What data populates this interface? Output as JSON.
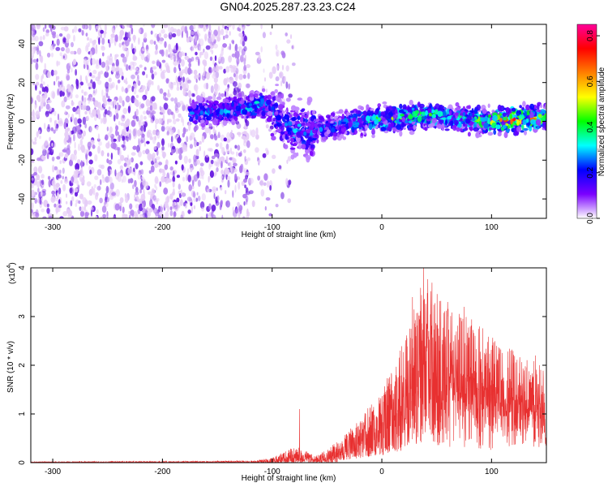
{
  "title": "GN04.2025.287.23.23.C24",
  "colors": {
    "scatter_light": "#e6cdf7",
    "scatter_mid": "#b17df0",
    "scatter_dark": "#6a1ee0",
    "snr_line": "#e83030",
    "axis": "#000000"
  },
  "chart_data": [
    {
      "type": "heatmap",
      "xlabel": "Height of straight line (km)",
      "ylabel": "Frequency (Hz)",
      "xlim": [
        -320,
        150
      ],
      "ylim": [
        -50,
        50
      ],
      "x_ticks": [
        -300,
        -200,
        -100,
        0,
        100
      ],
      "y_ticks": [
        -40,
        -20,
        0,
        20,
        40
      ],
      "colorbar": {
        "label": "Normalized spectral amplitude",
        "range": [
          0,
          0.85
        ],
        "ticks": [
          0.0,
          0.2,
          0.4,
          0.6,
          0.8
        ],
        "tick_labels": [
          "0.0",
          "0.2",
          "0.4",
          "0.6",
          "0.8"
        ],
        "colormap": [
          "#ffffff",
          "#7a00ff",
          "#0000ff",
          "#00ffff",
          "#00ff00",
          "#ffff00",
          "#ff8000",
          "#ff0000",
          "#ff0099"
        ]
      },
      "band": {
        "center_x": [
          -175,
          -150,
          -125,
          -110,
          -100,
          -90,
          -80,
          -60,
          -40,
          -20,
          0,
          20,
          40,
          60,
          80,
          100,
          120,
          150
        ],
        "center_hz": [
          4,
          5,
          7,
          9,
          5,
          -1,
          -5,
          -4,
          -2,
          0,
          1,
          2,
          3,
          2,
          1,
          0,
          1,
          2
        ],
        "peak_amplitude": [
          0.3,
          0.3,
          0.35,
          0.4,
          0.3,
          0.25,
          0.35,
          0.3,
          0.3,
          0.4,
          0.5,
          0.5,
          0.5,
          0.45,
          0.5,
          0.6,
          0.75,
          0.6
        ]
      },
      "noise_region_x": [
        -320,
        -120
      ]
    },
    {
      "type": "line",
      "xlabel": "Height of straight line (km)",
      "ylabel": "SNR (10 * v/v)",
      "y_scale_label": "(x10",
      "y_scale_exponent": "4",
      "xlim": [
        -320,
        150
      ],
      "ylim": [
        0,
        4
      ],
      "x_ticks": [
        -300,
        -200,
        -100,
        0,
        100
      ],
      "y_ticks": [
        0,
        1,
        2,
        3,
        4
      ],
      "envelope": {
        "x": [
          -320,
          -120,
          -100,
          -80,
          -60,
          -40,
          -20,
          0,
          20,
          40,
          60,
          80,
          100,
          120,
          150
        ],
        "y": [
          0.02,
          0.04,
          0.1,
          0.35,
          0.15,
          0.45,
          0.9,
          1.5,
          2.5,
          4.0,
          3.2,
          3.0,
          2.6,
          2.3,
          2.0
        ]
      },
      "spikes": [
        {
          "x": -75,
          "y": 1.1
        },
        {
          "x": 38,
          "y": 4.0
        },
        {
          "x": 28,
          "y": 3.4
        },
        {
          "x": 60,
          "y": 3.3
        },
        {
          "x": 75,
          "y": 3.2
        },
        {
          "x": 140,
          "y": 2.2
        }
      ]
    }
  ]
}
